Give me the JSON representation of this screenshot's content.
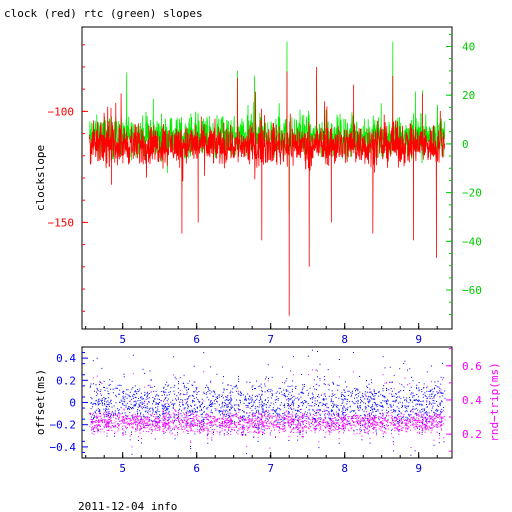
{
  "title": "clock (red) rtc (green) slopes",
  "footer": "2011-12-04 info",
  "chart_data": [
    {
      "type": "line",
      "title": "clock (red) rtc (green) slopes",
      "xlabel": "",
      "ylabel": "clockslope",
      "xlim": [
        4.45,
        9.45
      ],
      "ylim_left": [
        -198,
        -62
      ],
      "ylim_right": [
        -76,
        48
      ],
      "x_ticks": [
        {
          "value": 5,
          "label": "5"
        },
        {
          "value": 6,
          "label": "6"
        },
        {
          "value": 7,
          "label": "7"
        },
        {
          "value": 8,
          "label": "8"
        },
        {
          "value": 9,
          "label": "9"
        }
      ],
      "y_left_ticks": [
        {
          "value": -100,
          "label": "−100"
        },
        {
          "value": -150,
          "label": "−150"
        }
      ],
      "y_right_ticks": [
        {
          "value": 40,
          "label": "40"
        },
        {
          "value": 20,
          "label": "20"
        },
        {
          "value": 0,
          "label": "0"
        },
        {
          "value": -20,
          "label": "−20"
        },
        {
          "value": -40,
          "label": "−40"
        },
        {
          "value": -60,
          "label": "−60"
        }
      ],
      "series": [
        {
          "name": "clock",
          "axis": "left",
          "color": "#ff0000",
          "x_range": [
            4.55,
            9.35
          ],
          "baseline": -115,
          "band": [
            -124,
            -104
          ],
          "spikes_up": [
            [
              6.55,
              -85
            ],
            [
              7.22,
              -82
            ],
            [
              7.62,
              -80
            ],
            [
              8.12,
              -88
            ],
            [
              8.65,
              -84
            ],
            [
              9.05,
              -92
            ]
          ],
          "spikes_down": [
            [
              4.85,
              -133
            ],
            [
              5.8,
              -155
            ],
            [
              6.02,
              -150
            ],
            [
              6.88,
              -158
            ],
            [
              7.25,
              -192
            ],
            [
              7.52,
              -170
            ],
            [
              7.82,
              -150
            ],
            [
              8.38,
              -155
            ],
            [
              8.93,
              -158
            ],
            [
              9.24,
              -166
            ]
          ]
        },
        {
          "name": "rtc",
          "axis": "right",
          "color": "#00ee00",
          "x_range": [
            4.55,
            9.35
          ],
          "baseline": 3,
          "band": [
            -3,
            15
          ],
          "spikes_up": [
            [
              6.55,
              30
            ],
            [
              6.78,
              28
            ],
            [
              7.22,
              42
            ],
            [
              7.62,
              28
            ],
            [
              8.65,
              42
            ],
            [
              9.05,
              22
            ]
          ],
          "spikes_down": [
            [
              5.8,
              -18
            ],
            [
              7.25,
              -28
            ]
          ]
        }
      ]
    },
    {
      "type": "scatter",
      "xlabel": "",
      "ylabel_left": "offset(ms)",
      "ylabel_right": "rnd−trip(ms)",
      "xlim": [
        4.45,
        9.45
      ],
      "ylim_left": [
        -0.5,
        0.5
      ],
      "ylim_right": [
        0.06,
        0.71
      ],
      "x_ticks": [
        {
          "value": 5,
          "label": "5"
        },
        {
          "value": 6,
          "label": "6"
        },
        {
          "value": 7,
          "label": "7"
        },
        {
          "value": 8,
          "label": "8"
        },
        {
          "value": 9,
          "label": "9"
        }
      ],
      "y_left_ticks": [
        {
          "value": 0.4,
          "label": "0.4"
        },
        {
          "value": 0.2,
          "label": "0.2"
        },
        {
          "value": 0,
          "label": "0"
        },
        {
          "value": -0.2,
          "label": "−0.2"
        },
        {
          "value": -0.4,
          "label": "−0.4"
        }
      ],
      "y_right_ticks": [
        {
          "value": 0.6,
          "label": "0.6"
        },
        {
          "value": 0.4,
          "label": "0.4"
        },
        {
          "value": 0.2,
          "label": "0.2"
        }
      ],
      "series": [
        {
          "name": "offset",
          "axis": "left",
          "color": "#0000ff",
          "x_range": [
            4.55,
            9.35
          ],
          "center": -0.02,
          "spread": 0.14,
          "range": [
            -0.48,
            0.48
          ]
        },
        {
          "name": "rnd-trip",
          "axis": "right",
          "color": "#ff00ff",
          "x_range": [
            4.55,
            9.35
          ],
          "center": 0.27,
          "spread": 0.04,
          "range": [
            0.12,
            0.58
          ]
        }
      ]
    }
  ],
  "colors": {
    "axis_left_top": "#ff0000",
    "axis_right_top": "#00cc00",
    "axis_left_bottom": "#0000ff",
    "axis_right_bottom": "#ff00ff",
    "x_ticks": "#0000cc"
  }
}
